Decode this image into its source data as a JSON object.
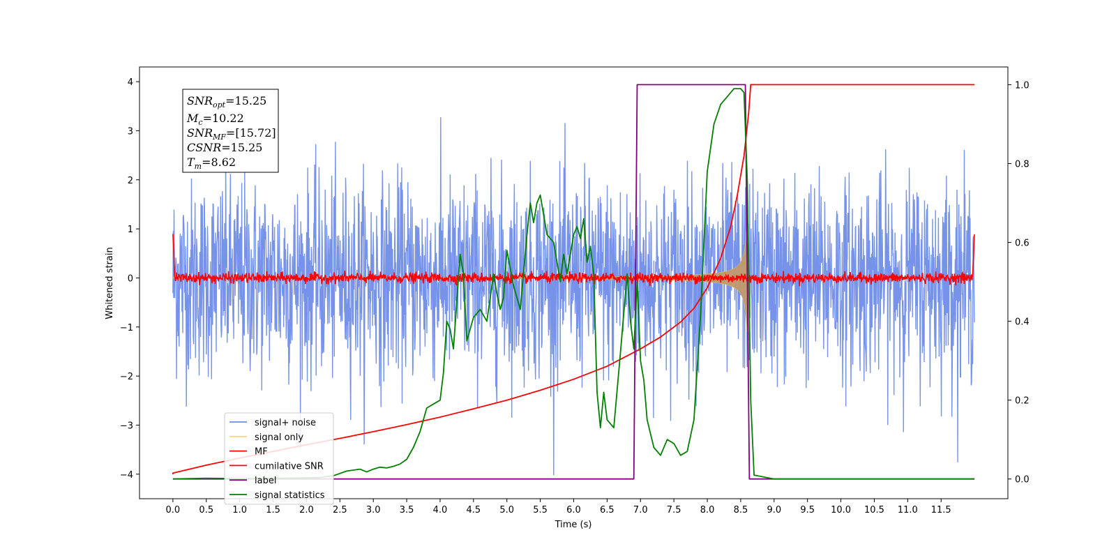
{
  "chart_data": {
    "type": "line",
    "xlabel": "Time (s)",
    "ylabel_left": "Whitened strain",
    "ylabel_right": "",
    "xlim": [
      -0.5,
      12.5
    ],
    "ylim_left": [
      -4.5,
      4.3
    ],
    "ylim_right": [
      -0.05,
      1.045
    ],
    "x_ticks": [
      "0.0",
      "0.5",
      "1.0",
      "1.5",
      "2.0",
      "2.5",
      "3.0",
      "3.5",
      "4.0",
      "4.5",
      "5.0",
      "5.5",
      "6.0",
      "6.5",
      "7.0",
      "7.5",
      "8.0",
      "8.5",
      "9.0",
      "9.5",
      "10.0",
      "10.5",
      "11.0",
      "11.5"
    ],
    "y_ticks_left": [
      "4",
      "3",
      "2",
      "1",
      "0",
      "−1",
      "−2",
      "−3",
      "−4"
    ],
    "y_ticks_right": [
      "1.0",
      "0.8",
      "0.6",
      "0.4",
      "0.2",
      "0.0"
    ],
    "grid": false,
    "legend_position": "lower-left",
    "annotation": {
      "snr_opt": {
        "base": "SNR",
        "sub": "opt",
        "value": "=15.25"
      },
      "mc": {
        "base": "M",
        "sub": "c",
        "value": "=10.22"
      },
      "snr_mf": {
        "base": "SNR",
        "sub": "MF",
        "value": "=[15.72]"
      },
      "csnr": {
        "base": "CSNR",
        "sub": "",
        "value": "=15.25"
      },
      "tm": {
        "base": "T",
        "sub": "m",
        "value": "=8.62"
      }
    },
    "series": [
      {
        "name": "signal+ noise",
        "color": "#6f8de8",
        "axis": "left",
        "kind": "noise",
        "x_range": [
          0.0,
          12.0
        ],
        "amplitude_sigma": 1.0
      },
      {
        "name": "signal only",
        "color": "#ffd27f",
        "axis": "left",
        "kind": "chirp",
        "x_range": [
          0.0,
          8.62
        ],
        "peak_amplitude": 1.1
      },
      {
        "name": "MF",
        "color": "#ff0000",
        "axis": "left",
        "kind": "mf",
        "x_range": [
          0.0,
          12.0
        ],
        "start_value": 1.0,
        "end_value": 0.9
      },
      {
        "name": "cumilative SNR",
        "color": "#ff0000",
        "axis": "right",
        "x": [
          0.0,
          0.5,
          1.0,
          1.5,
          2.0,
          2.5,
          3.0,
          3.5,
          4.0,
          4.5,
          5.0,
          5.5,
          6.0,
          6.5,
          7.0,
          7.3,
          7.6,
          7.8,
          8.0,
          8.2,
          8.35,
          8.45,
          8.55,
          8.62,
          8.65,
          12.0
        ],
        "y": [
          0.015,
          0.035,
          0.053,
          0.07,
          0.087,
          0.103,
          0.12,
          0.138,
          0.157,
          0.178,
          0.2,
          0.225,
          0.253,
          0.286,
          0.33,
          0.36,
          0.398,
          0.433,
          0.485,
          0.56,
          0.64,
          0.72,
          0.82,
          0.93,
          1.0,
          1.0
        ]
      },
      {
        "name": "label",
        "color": "#800080",
        "axis": "right",
        "x": [
          0.0,
          6.9,
          6.95,
          8.57,
          8.63,
          12.0
        ],
        "y": [
          0.0,
          0.0,
          1.0,
          1.0,
          0.0,
          0.0
        ]
      },
      {
        "name": "signal statistics",
        "color": "#008000",
        "axis": "right",
        "x": [
          0.0,
          0.5,
          1.0,
          1.5,
          2.0,
          2.2,
          2.4,
          2.6,
          2.8,
          2.9,
          3.0,
          3.1,
          3.2,
          3.3,
          3.4,
          3.5,
          3.6,
          3.7,
          3.8,
          3.9,
          4.0,
          4.05,
          4.1,
          4.15,
          4.2,
          4.25,
          4.3,
          4.35,
          4.4,
          4.5,
          4.6,
          4.7,
          4.8,
          4.85,
          4.9,
          4.95,
          5.0,
          5.1,
          5.2,
          5.3,
          5.35,
          5.4,
          5.45,
          5.5,
          5.6,
          5.7,
          5.8,
          5.85,
          5.9,
          6.0,
          6.05,
          6.1,
          6.15,
          6.2,
          6.25,
          6.3,
          6.35,
          6.4,
          6.45,
          6.5,
          6.6,
          6.7,
          6.8,
          6.85,
          6.9,
          6.95,
          7.0,
          7.05,
          7.1,
          7.2,
          7.3,
          7.4,
          7.5,
          7.6,
          7.7,
          7.8,
          7.9,
          8.0,
          8.1,
          8.2,
          8.3,
          8.4,
          8.5,
          8.55,
          8.6,
          8.65,
          8.7,
          9.0,
          12.0
        ],
        "y": [
          0.0,
          0.002,
          0.001,
          0.002,
          0.003,
          0.004,
          0.008,
          0.02,
          0.025,
          0.018,
          0.025,
          0.03,
          0.028,
          0.032,
          0.038,
          0.05,
          0.08,
          0.12,
          0.18,
          0.19,
          0.2,
          0.27,
          0.4,
          0.38,
          0.33,
          0.45,
          0.57,
          0.52,
          0.35,
          0.41,
          0.43,
          0.4,
          0.52,
          0.47,
          0.43,
          0.46,
          0.58,
          0.49,
          0.43,
          0.62,
          0.7,
          0.65,
          0.7,
          0.72,
          0.62,
          0.6,
          0.5,
          0.57,
          0.52,
          0.62,
          0.64,
          0.61,
          0.66,
          0.55,
          0.59,
          0.52,
          0.22,
          0.13,
          0.22,
          0.15,
          0.13,
          0.32,
          0.52,
          0.4,
          0.33,
          0.5,
          0.3,
          0.25,
          0.15,
          0.08,
          0.06,
          0.1,
          0.09,
          0.06,
          0.07,
          0.15,
          0.42,
          0.78,
          0.9,
          0.95,
          0.97,
          0.99,
          0.99,
          0.98,
          0.75,
          0.2,
          0.01,
          0.0,
          0.0
        ]
      }
    ]
  }
}
